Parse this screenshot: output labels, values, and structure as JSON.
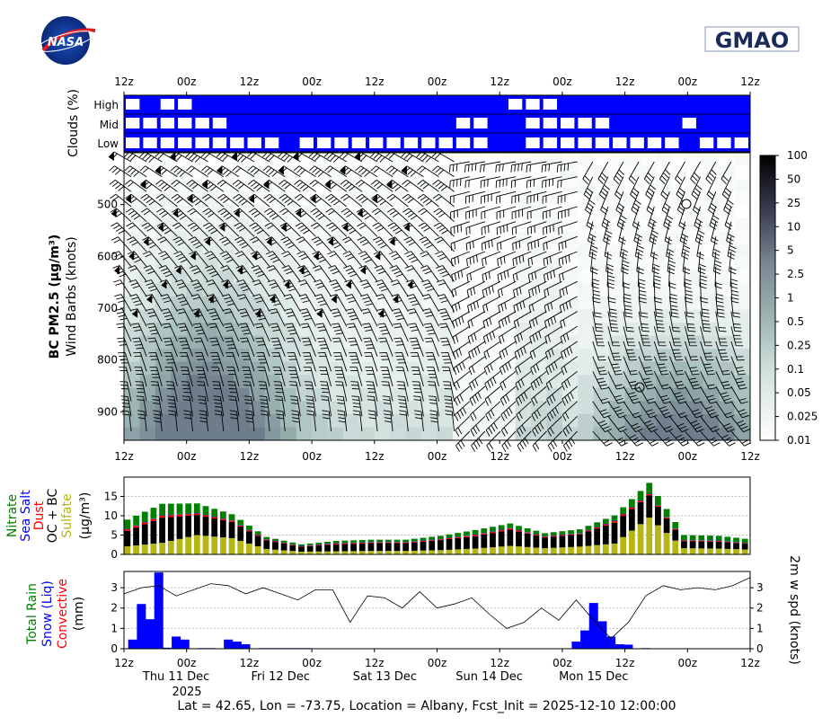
{
  "logos": {
    "left": "NASA",
    "right": "GMAO"
  },
  "time_ticks": [
    "12z",
    "00z",
    "12z",
    "00z",
    "12z",
    "00z",
    "12z",
    "00z",
    "12z",
    "00z",
    "12z"
  ],
  "day_labels": [
    "Thu 11 Dec",
    "Fri 12 Dec",
    "Sat 13 Dec",
    "Sun 14 Dec",
    "Mon 15 Dec"
  ],
  "year_label": "2025",
  "footer": "Lat = 42.65, Lon = -73.75, Location = Albany, Fcst_Init = 2025-12-10 12:00:00",
  "chart_data": [
    {
      "type": "heatmap",
      "id": "clouds",
      "ylabel": "Clouds (%)",
      "levels": [
        "High",
        "Mid",
        "Low"
      ],
      "color": "#0000ff",
      "clear_windows_hours": {
        "High": [
          [
            0,
            6
          ],
          [
            12,
            18
          ],
          [
            18,
            24
          ],
          [
            132,
            150
          ]
        ],
        "Mid": [
          [
            0,
            6
          ],
          [
            6,
            36
          ],
          [
            114,
            126
          ],
          [
            138,
            168
          ],
          [
            192,
            198
          ]
        ],
        "Low": [
          [
            0,
            54
          ],
          [
            60,
            126
          ],
          [
            138,
            192
          ],
          [
            198,
            216
          ]
        ]
      }
    },
    {
      "type": "heatmap",
      "id": "bc_pm25",
      "ylabel": "BC PM2.5 (μg/m³)",
      "ylabel2": "Wind Barbs (knots)",
      "yticks": [
        500,
        600,
        700,
        800,
        900
      ],
      "ylim": [
        955,
        400
      ],
      "colorbar_ticks": [
        "100",
        "50",
        "25",
        "10",
        "5",
        "2.5",
        "1",
        "0.5",
        "0.25",
        "0.1",
        "0.05",
        "0.025",
        "0.01"
      ]
    },
    {
      "type": "bar",
      "id": "aerosol",
      "ylabel_parts": [
        "Nitrate",
        "Sea Salt",
        "Dust",
        "OC + BC",
        "Sulfate",
        "(μg/m³)"
      ],
      "ylabel_colors": [
        "#008000",
        "#0000ff",
        "#ff0000",
        "#000000",
        "#b5b515",
        "#000000"
      ],
      "yticks": [
        0,
        5,
        10,
        15
      ],
      "ylim": [
        0,
        20
      ],
      "x_hours": [
        0,
        12,
        24,
        36,
        48,
        60,
        72,
        84,
        96,
        108,
        120,
        132,
        144,
        156,
        168,
        180,
        192,
        204,
        216
      ],
      "series": [
        {
          "name": "Sulfate",
          "color": "#b5b515",
          "values": [
            2.1,
            3.0,
            5.0,
            4.2,
            1.4,
            0.7,
            0.8,
            0.9,
            0.9,
            1.1,
            1.5,
            2.2,
            1.6,
            2.0,
            2.8,
            9.5,
            1.6,
            1.5,
            1.2
          ]
        },
        {
          "name": "OC + BC",
          "color": "#000000",
          "values": [
            4.0,
            6.5,
            5.2,
            4.2,
            2.2,
            1.3,
            1.8,
            2.0,
            2.0,
            2.6,
            3.2,
            4.2,
            2.8,
            3.2,
            5.4,
            5.8,
            1.8,
            1.8,
            1.4
          ]
        },
        {
          "name": "Dust",
          "color": "#ff0000",
          "values": [
            0.4,
            0.5,
            0.4,
            0.3,
            0.2,
            0.1,
            0.2,
            0.2,
            0.2,
            0.2,
            0.3,
            0.3,
            0.2,
            0.2,
            0.4,
            0.3,
            0.2,
            0.2,
            0.1
          ]
        },
        {
          "name": "Sea Salt",
          "color": "#0000ff",
          "values": [
            0.1,
            0.1,
            0.1,
            0.1,
            0.1,
            0.1,
            0.1,
            0.1,
            0.1,
            0.1,
            0.1,
            0.1,
            0.1,
            0.1,
            0.1,
            0.1,
            0.1,
            0.1,
            0.1
          ]
        },
        {
          "name": "Nitrate",
          "color": "#008000",
          "values": [
            2.4,
            3.0,
            2.5,
            1.6,
            0.6,
            0.4,
            0.6,
            0.6,
            0.6,
            0.8,
            1.2,
            1.2,
            0.8,
            1.0,
            1.4,
            2.8,
            1.3,
            1.2,
            1.0
          ]
        }
      ]
    },
    {
      "type": "bar",
      "id": "precip",
      "ylabel_parts": [
        "Total Rain",
        "Snow (Liq)",
        "Convective",
        "(mm)"
      ],
      "ylabel_colors": [
        "#008000",
        "#0000ff",
        "#ff0000",
        "#000000"
      ],
      "yticks": [
        0,
        1,
        2,
        3
      ],
      "ylim": [
        0,
        3.8
      ],
      "y2label": "2m w spd (knots)",
      "y2ticks": [
        0,
        1,
        2,
        3
      ],
      "snow_bars": [
        {
          "x": 3,
          "v": 0.45
        },
        {
          "x": 6,
          "v": 2.2
        },
        {
          "x": 9,
          "v": 1.45
        },
        {
          "x": 12,
          "v": 3.75
        },
        {
          "x": 15,
          "v": 0.05
        },
        {
          "x": 18,
          "v": 0.6
        },
        {
          "x": 21,
          "v": 0.45
        },
        {
          "x": 27,
          "v": 0.03
        },
        {
          "x": 30,
          "v": 0.03
        },
        {
          "x": 33,
          "v": 0.02
        },
        {
          "x": 36,
          "v": 0.45
        },
        {
          "x": 39,
          "v": 0.35
        },
        {
          "x": 42,
          "v": 0.22
        },
        {
          "x": 48,
          "v": 0.03
        },
        {
          "x": 51,
          "v": 0.03
        },
        {
          "x": 54,
          "v": 0.03
        },
        {
          "x": 57,
          "v": 0.03
        },
        {
          "x": 60,
          "v": 0.03
        },
        {
          "x": 63,
          "v": 0.03
        },
        {
          "x": 156,
          "v": 0.35
        },
        {
          "x": 159,
          "v": 0.9
        },
        {
          "x": 162,
          "v": 2.25
        },
        {
          "x": 165,
          "v": 1.35
        },
        {
          "x": 168,
          "v": 0.6
        },
        {
          "x": 171,
          "v": 0.22
        },
        {
          "x": 174,
          "v": 0.2
        },
        {
          "x": 180,
          "v": 0.03
        }
      ],
      "wind_speed": {
        "x": [
          0,
          6,
          12,
          18,
          24,
          30,
          36,
          42,
          48,
          54,
          60,
          66,
          72,
          78,
          84,
          90,
          96,
          102,
          108,
          114,
          120,
          126,
          132,
          138,
          144,
          150,
          156,
          162,
          168,
          174,
          180,
          186,
          192,
          198,
          204,
          210,
          216
        ],
        "values": [
          2.7,
          3.0,
          3.1,
          2.6,
          2.9,
          3.2,
          3.1,
          2.7,
          3.0,
          2.7,
          2.4,
          2.9,
          2.9,
          1.3,
          2.6,
          2.5,
          2.0,
          2.8,
          2.0,
          2.2,
          2.5,
          1.7,
          1.0,
          1.3,
          2.0,
          1.4,
          2.4,
          1.4,
          0.5,
          1.3,
          2.6,
          3.1,
          2.9,
          3.0,
          2.9,
          3.1,
          3.5
        ]
      }
    }
  ]
}
